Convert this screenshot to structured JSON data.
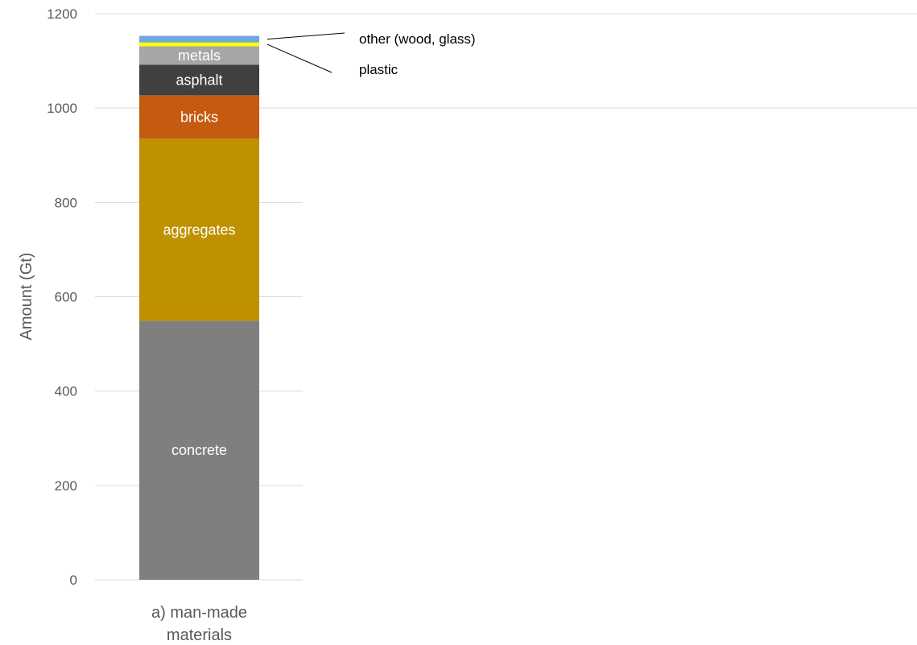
{
  "chart_data": {
    "type": "bar",
    "stacked": true,
    "categories": [
      "a) man-made materials"
    ],
    "ylabel": "Amount (Gt)",
    "ylim": [
      0,
      1200
    ],
    "yticks": [
      0,
      200,
      400,
      600,
      800,
      1000,
      1200
    ],
    "grid": true,
    "series": [
      {
        "name": "concrete",
        "values": [
          549
        ],
        "color": "#7f7f7f"
      },
      {
        "name": "aggregates",
        "values": [
          386
        ],
        "color": "#bf9000"
      },
      {
        "name": "bricks",
        "values": [
          92
        ],
        "color": "#c55a11"
      },
      {
        "name": "asphalt",
        "values": [
          65
        ],
        "color": "#404040"
      },
      {
        "name": "metals",
        "values": [
          39
        ],
        "color": "#a6a6a6"
      },
      {
        "name": "plastic",
        "values": [
          8
        ],
        "color": "#ffff00"
      },
      {
        "name": "other (wood, glass)",
        "values": [
          14
        ],
        "color": "#6fa8dc"
      }
    ],
    "callouts": [
      "other (wood, glass)",
      "plastic"
    ]
  }
}
